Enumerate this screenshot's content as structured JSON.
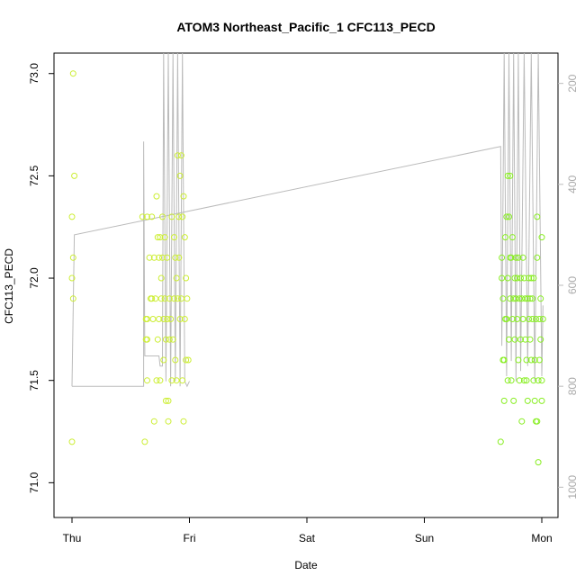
{
  "chart_data": {
    "type": "scatter",
    "title": "ATOM3 Northeast_Pacific_1 CFC113_PECD",
    "xlabel": "Date",
    "ylabel": "CFC113_PECD",
    "x_ticks": [
      "Thu",
      "Fri",
      "Sat",
      "Sun",
      "Mon"
    ],
    "x_range_days": [
      -0.1,
      4.15
    ],
    "ylim": [
      70.83,
      73.1
    ],
    "y_ticks": [
      71.0,
      71.5,
      72.0,
      72.5,
      73.0
    ],
    "right_axis": {
      "label": "",
      "ticks": [
        200,
        400,
        600,
        800,
        1000
      ],
      "range": [
        1060,
        140
      ],
      "color": "#bbbbbb"
    },
    "colors": {
      "points_early": "#ccee33",
      "points_late": "#88ee22",
      "profile_line": "#bbbbbb"
    },
    "series": [
      {
        "color": "#ccee33",
        "points": [
          [
            0.01,
            73.0
          ],
          [
            0.02,
            72.5
          ],
          [
            0.0,
            72.3
          ],
          [
            0.01,
            72.1
          ],
          [
            0.0,
            72.0
          ],
          [
            0.01,
            71.9
          ],
          [
            0.0,
            71.2
          ],
          [
            0.6,
            72.3
          ],
          [
            0.64,
            72.3
          ],
          [
            0.68,
            72.3
          ],
          [
            0.62,
            71.2
          ],
          [
            0.63,
            71.8
          ],
          [
            0.64,
            71.8
          ],
          [
            0.63,
            71.7
          ],
          [
            0.64,
            71.7
          ],
          [
            0.64,
            71.5
          ],
          [
            0.66,
            72.1
          ],
          [
            0.67,
            71.9
          ],
          [
            0.68,
            71.9
          ],
          [
            0.69,
            71.8
          ],
          [
            0.7,
            72.1
          ],
          [
            0.7,
            71.3
          ],
          [
            0.71,
            71.9
          ],
          [
            0.72,
            72.4
          ],
          [
            0.72,
            71.5
          ],
          [
            0.73,
            72.2
          ],
          [
            0.73,
            71.7
          ],
          [
            0.74,
            72.1
          ],
          [
            0.74,
            71.8
          ],
          [
            0.75,
            72.2
          ],
          [
            0.75,
            71.5
          ],
          [
            0.76,
            71.9
          ],
          [
            0.76,
            72.0
          ],
          [
            0.77,
            72.3
          ],
          [
            0.77,
            72.1
          ],
          [
            0.78,
            71.8
          ],
          [
            0.78,
            71.6
          ],
          [
            0.79,
            72.2
          ],
          [
            0.79,
            71.9
          ],
          [
            0.8,
            71.7
          ],
          [
            0.8,
            71.4
          ],
          [
            0.81,
            72.1
          ],
          [
            0.81,
            71.8
          ],
          [
            0.82,
            71.4
          ],
          [
            0.82,
            71.3
          ],
          [
            0.83,
            71.7
          ],
          [
            0.83,
            71.9
          ],
          [
            0.84,
            71.8
          ],
          [
            0.85,
            72.3
          ],
          [
            0.85,
            71.5
          ],
          [
            0.86,
            71.7
          ],
          [
            0.87,
            72.2
          ],
          [
            0.87,
            71.9
          ],
          [
            0.88,
            72.1
          ],
          [
            0.88,
            71.6
          ],
          [
            0.89,
            72.0
          ],
          [
            0.89,
            71.5
          ],
          [
            0.9,
            72.6
          ],
          [
            0.9,
            71.9
          ],
          [
            0.91,
            72.3
          ],
          [
            0.91,
            72.1
          ],
          [
            0.92,
            72.5
          ],
          [
            0.92,
            71.8
          ],
          [
            0.93,
            72.6
          ],
          [
            0.93,
            71.9
          ],
          [
            0.94,
            72.3
          ],
          [
            0.94,
            71.5
          ],
          [
            0.95,
            72.4
          ],
          [
            0.95,
            71.3
          ],
          [
            0.96,
            72.2
          ],
          [
            0.96,
            71.8
          ],
          [
            0.97,
            72.0
          ],
          [
            0.97,
            71.6
          ],
          [
            0.98,
            71.9
          ],
          [
            0.99,
            71.6
          ]
        ]
      },
      {
        "color": "#88ee22",
        "points": [
          [
            3.65,
            71.2
          ],
          [
            3.66,
            72.1
          ],
          [
            3.66,
            72.0
          ],
          [
            3.67,
            71.9
          ],
          [
            3.67,
            71.6
          ],
          [
            3.68,
            71.6
          ],
          [
            3.68,
            71.4
          ],
          [
            3.69,
            72.2
          ],
          [
            3.69,
            71.8
          ],
          [
            3.7,
            72.3
          ],
          [
            3.7,
            71.8
          ],
          [
            3.71,
            72.5
          ],
          [
            3.71,
            72.0
          ],
          [
            3.71,
            71.5
          ],
          [
            3.72,
            72.3
          ],
          [
            3.72,
            71.7
          ],
          [
            3.73,
            72.5
          ],
          [
            3.73,
            72.1
          ],
          [
            3.73,
            71.9
          ],
          [
            3.74,
            72.1
          ],
          [
            3.74,
            71.5
          ],
          [
            3.75,
            72.2
          ],
          [
            3.75,
            71.8
          ],
          [
            3.76,
            71.9
          ],
          [
            3.76,
            71.4
          ],
          [
            3.77,
            72.0
          ],
          [
            3.77,
            71.7
          ],
          [
            3.78,
            72.1
          ],
          [
            3.78,
            71.9
          ],
          [
            3.79,
            72.0
          ],
          [
            3.79,
            71.8
          ],
          [
            3.8,
            72.1
          ],
          [
            3.8,
            71.6
          ],
          [
            3.81,
            71.9
          ],
          [
            3.81,
            71.5
          ],
          [
            3.82,
            72.0
          ],
          [
            3.82,
            71.7
          ],
          [
            3.83,
            71.9
          ],
          [
            3.83,
            71.3
          ],
          [
            3.84,
            72.1
          ],
          [
            3.84,
            71.8
          ],
          [
            3.85,
            72.0
          ],
          [
            3.85,
            71.5
          ],
          [
            3.86,
            71.9
          ],
          [
            3.86,
            71.7
          ],
          [
            3.87,
            71.6
          ],
          [
            3.87,
            71.5
          ],
          [
            3.88,
            71.9
          ],
          [
            3.88,
            71.4
          ],
          [
            3.89,
            72.0
          ],
          [
            3.89,
            71.8
          ],
          [
            3.9,
            71.9
          ],
          [
            3.9,
            71.7
          ],
          [
            3.91,
            72.0
          ],
          [
            3.91,
            71.6
          ],
          [
            3.92,
            71.9
          ],
          [
            3.92,
            71.8
          ],
          [
            3.93,
            72.0
          ],
          [
            3.93,
            71.5
          ],
          [
            3.94,
            71.6
          ],
          [
            3.94,
            71.4
          ],
          [
            3.95,
            71.8
          ],
          [
            3.95,
            71.3
          ],
          [
            3.96,
            72.3
          ],
          [
            3.96,
            72.1
          ],
          [
            3.96,
            71.3
          ],
          [
            3.97,
            71.5
          ],
          [
            3.97,
            71.1
          ],
          [
            3.98,
            71.8
          ],
          [
            3.98,
            71.6
          ],
          [
            3.99,
            71.9
          ],
          [
            3.99,
            71.7
          ],
          [
            4.0,
            71.4
          ],
          [
            4.0,
            71.5
          ],
          [
            4.0,
            72.2
          ],
          [
            4.01,
            71.8
          ]
        ]
      }
    ],
    "profile_line": [
      [
        0.0,
        800
      ],
      [
        0.02,
        500
      ],
      [
        3.65,
        325
      ],
      [
        3.66,
        720
      ],
      [
        3.68,
        140
      ],
      [
        3.7,
        780
      ],
      [
        3.72,
        140
      ],
      [
        3.74,
        750
      ],
      [
        3.76,
        140
      ],
      [
        3.78,
        790
      ],
      [
        3.8,
        140
      ],
      [
        3.82,
        770
      ],
      [
        3.85,
        140
      ],
      [
        3.88,
        760
      ],
      [
        3.91,
        140
      ],
      [
        3.94,
        790
      ],
      [
        3.97,
        140
      ],
      [
        4.0,
        780
      ],
      [
        4.01,
        640
      ]
    ],
    "profile_line_early": [
      [
        0.0,
        800
      ],
      [
        0.61,
        800
      ],
      [
        0.61,
        315
      ],
      [
        0.62,
        740
      ],
      [
        0.74,
        740
      ],
      [
        0.75,
        760
      ],
      [
        0.77,
        760
      ],
      [
        0.78,
        140
      ],
      [
        0.8,
        790
      ],
      [
        0.82,
        140
      ],
      [
        0.84,
        800
      ],
      [
        0.86,
        140
      ],
      [
        0.88,
        790
      ],
      [
        0.9,
        140
      ],
      [
        0.92,
        800
      ],
      [
        0.94,
        140
      ],
      [
        0.96,
        790
      ],
      [
        0.98,
        800
      ],
      [
        1.0,
        790
      ]
    ]
  }
}
